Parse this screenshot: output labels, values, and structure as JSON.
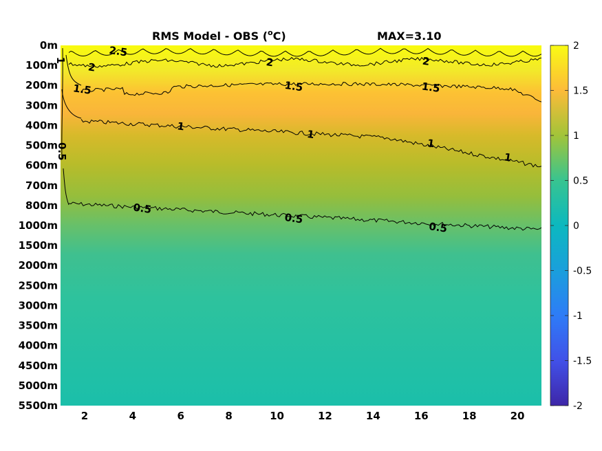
{
  "chart_data": {
    "type": "heatmap",
    "title": "RMS Model - OBS",
    "title_unit_sup": "o",
    "title_unit": "C",
    "annotation": "MAX=3.10",
    "x_ticks": [
      "2",
      "4",
      "6",
      "8",
      "10",
      "12",
      "14",
      "16",
      "18",
      "20"
    ],
    "xlim": [
      1,
      21
    ],
    "y_ticks": [
      "0m",
      "100m",
      "200m",
      "300m",
      "400m",
      "500m",
      "600m",
      "700m",
      "800m",
      "1000m",
      "1500m",
      "2000m",
      "2500m",
      "3000m",
      "3500m",
      "4000m",
      "4500m",
      "5000m",
      "5500m"
    ],
    "colorbar": {
      "range": [
        -2,
        2
      ],
      "ticks": [
        "2",
        "1.5",
        "1",
        "0.5",
        "0",
        "-0.5",
        "-1",
        "-1.5",
        "-2"
      ],
      "colormap": "parula"
    },
    "contour_levels": [
      0.5,
      1,
      1.5,
      2,
      2.5
    ],
    "contour_labels": [
      {
        "text": "2.5",
        "x": 3.4,
        "depth_index": 0.3
      },
      {
        "text": "2",
        "x": 2.3,
        "depth_index": 1.1
      },
      {
        "text": "2",
        "x": 9.7,
        "depth_index": 0.85
      },
      {
        "text": "2",
        "x": 16.2,
        "depth_index": 0.8
      },
      {
        "text": "1.5",
        "x": 1.9,
        "depth_index": 2.2
      },
      {
        "text": "1.5",
        "x": 10.7,
        "depth_index": 2.05
      },
      {
        "text": "1.5",
        "x": 16.4,
        "depth_index": 2.1
      },
      {
        "text": "1",
        "x": 1.0,
        "depth_index": 0.75
      },
      {
        "text": "1",
        "x": 6.0,
        "depth_index": 4.05
      },
      {
        "text": "1",
        "x": 11.4,
        "depth_index": 4.45
      },
      {
        "text": "1",
        "x": 16.4,
        "depth_index": 4.9
      },
      {
        "text": "1",
        "x": 19.6,
        "depth_index": 5.6
      },
      {
        "text": "0.5",
        "x": 1.05,
        "depth_index": 5.3
      },
      {
        "text": "0.5",
        "x": 4.4,
        "depth_index": 8.15
      },
      {
        "text": "0.5",
        "x": 10.7,
        "depth_index": 8.65
      },
      {
        "text": "0.5",
        "x": 16.7,
        "depth_index": 9.1
      }
    ],
    "profile_by_depth_index": [
      {
        "depth_index": 0,
        "value": 2.2
      },
      {
        "depth_index": 1,
        "value": 2.0
      },
      {
        "depth_index": 2,
        "value": 1.6
      },
      {
        "depth_index": 3,
        "value": 1.25
      },
      {
        "depth_index": 4,
        "value": 1.05
      },
      {
        "depth_index": 5,
        "value": 0.95
      },
      {
        "depth_index": 6,
        "value": 0.85
      },
      {
        "depth_index": 7,
        "value": 0.7
      },
      {
        "depth_index": 8,
        "value": 0.55
      },
      {
        "depth_index": 9,
        "value": 0.45
      },
      {
        "depth_index": 10,
        "value": 0.4
      },
      {
        "depth_index": 12,
        "value": 0.35
      },
      {
        "depth_index": 18,
        "value": 0.25
      }
    ]
  }
}
